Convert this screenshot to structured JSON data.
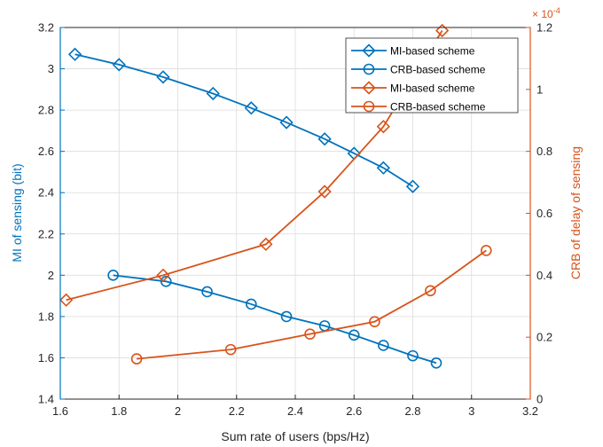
{
  "chart_data": {
    "type": "line",
    "xlabel": "Sum rate of users (bps/Hz)",
    "ylabel_left": "MI of sensing (bit)",
    "ylabel_right": "CRB of delay of sensing",
    "right_exponent_label": "× 10",
    "right_exponent_power": "-4",
    "xlim": [
      1.6,
      3.2
    ],
    "ylim_left": [
      1.4,
      3.2
    ],
    "ylim_right": [
      0,
      1.2
    ],
    "right_scale": 0.0001,
    "xticks": [
      "1.6",
      "1.8",
      "2",
      "2.2",
      "2.4",
      "2.6",
      "2.8",
      "3",
      "3.2"
    ],
    "yticks_left": [
      "1.4",
      "1.6",
      "1.8",
      "2",
      "2.2",
      "2.4",
      "2.6",
      "2.8",
      "3",
      "3.2"
    ],
    "yticks_right": [
      "0",
      "0.2",
      "0.4",
      "0.6",
      "0.8",
      "1",
      "1.2"
    ],
    "grid": true,
    "legend_position": "top-right",
    "colors": {
      "left": "#0072BD",
      "right": "#D95319"
    },
    "series": [
      {
        "name": "MI-based scheme",
        "axis": "left",
        "marker": "diamond",
        "color": "#0072BD",
        "x": [
          1.65,
          1.8,
          1.95,
          2.12,
          2.25,
          2.37,
          2.5,
          2.6,
          2.7,
          2.8
        ],
        "y": [
          3.07,
          3.02,
          2.96,
          2.88,
          2.81,
          2.74,
          2.66,
          2.59,
          2.52,
          2.43
        ]
      },
      {
        "name": "CRB-based scheme",
        "axis": "left",
        "marker": "circle",
        "color": "#0072BD",
        "x": [
          1.78,
          1.96,
          2.1,
          2.25,
          2.37,
          2.5,
          2.6,
          2.7,
          2.8,
          2.88
        ],
        "y": [
          2.0,
          1.97,
          1.92,
          1.86,
          1.8,
          1.755,
          1.71,
          1.66,
          1.61,
          1.575
        ]
      },
      {
        "name": "MI-based scheme",
        "axis": "right",
        "marker": "diamond",
        "color": "#D95319",
        "x": [
          1.62,
          1.95,
          2.3,
          2.5,
          2.7,
          2.9
        ],
        "y": [
          0.32,
          0.4,
          0.5,
          0.67,
          0.88,
          1.19
        ]
      },
      {
        "name": "CRB-based scheme",
        "axis": "right",
        "marker": "circle",
        "color": "#D95319",
        "x": [
          1.86,
          2.18,
          2.45,
          2.67,
          2.86,
          3.05
        ],
        "y": [
          0.13,
          0.16,
          0.21,
          0.25,
          0.35,
          0.48
        ]
      }
    ]
  }
}
